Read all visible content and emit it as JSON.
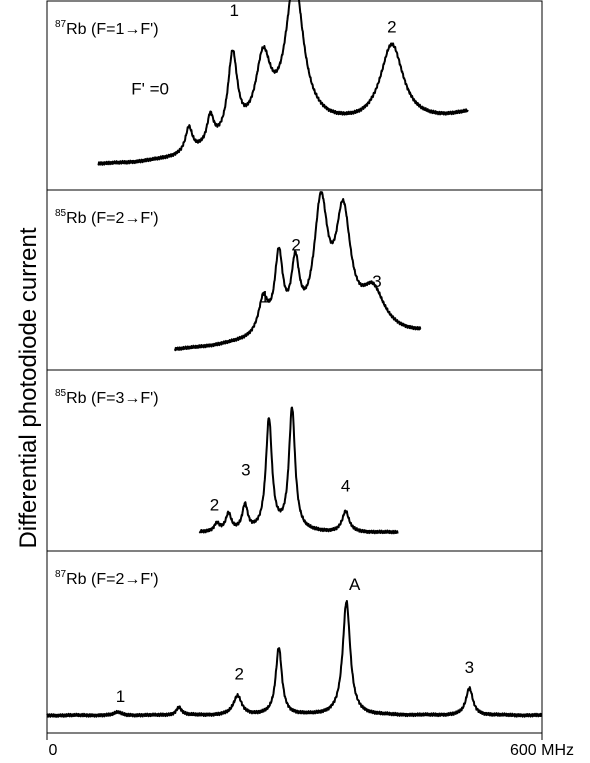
{
  "chart_data": {
    "type": "line",
    "ylabel": "Differential photodiode current",
    "xlim": [
      0,
      600
    ],
    "x_ticks": [
      {
        "value": 0,
        "label": "0"
      },
      {
        "value": 600,
        "label": "600 MHz"
      }
    ],
    "grid": false,
    "panels": [
      {
        "title_iso": "87",
        "title_rest": "Rb (F=1→F')",
        "x_range": [
          62,
          510
        ],
        "base": 0.08,
        "slope": 0.3,
        "curve": 0.55,
        "peaks": [
          {
            "x": 172,
            "h": 0.15,
            "w": 5
          },
          {
            "x": 198,
            "h": 0.17,
            "w": 5
          },
          {
            "x": 225,
            "h": 0.5,
            "w": 7
          },
          {
            "x": 262,
            "h": 0.42,
            "w": 11
          },
          {
            "x": 300,
            "h": 0.86,
            "w": 13
          },
          {
            "x": 418,
            "h": 0.48,
            "w": 17
          }
        ],
        "labels": [
          {
            "text": "F' =0",
            "x": 125,
            "y": 0.5
          },
          {
            "text": "1",
            "x": 227,
            "y": 0.97
          },
          {
            "text": "2",
            "x": 418,
            "y": 0.87
          }
        ]
      },
      {
        "title_iso": "85",
        "title_rest": "Rb (F=2→F')",
        "x_range": [
          155,
          453
        ],
        "base": 0.04,
        "slope": 0.1,
        "curve": 0.25,
        "peaks": [
          {
            "x": 262,
            "h": 0.22,
            "w": 7
          },
          {
            "x": 281,
            "h": 0.48,
            "w": 6
          },
          {
            "x": 301,
            "h": 0.4,
            "w": 6
          },
          {
            "x": 332,
            "h": 0.78,
            "w": 10
          },
          {
            "x": 359,
            "h": 0.72,
            "w": 11
          },
          {
            "x": 395,
            "h": 0.26,
            "w": 17
          }
        ],
        "labels": [
          {
            "text": "1",
            "x": 264,
            "y": 0.35
          },
          {
            "text": "2",
            "x": 302,
            "y": 0.68
          },
          {
            "text": "3",
            "x": 400,
            "y": 0.45
          }
        ]
      },
      {
        "title_iso": "85",
        "title_rest": "Rb (F=3→F')",
        "x_range": [
          185,
          425
        ],
        "base": 0.04,
        "slope": 0.0,
        "curve": 0.0,
        "peaks": [
          {
            "x": 206,
            "h": 0.05,
            "w": 4
          },
          {
            "x": 220,
            "h": 0.11,
            "w": 4
          },
          {
            "x": 240,
            "h": 0.16,
            "w": 4
          },
          {
            "x": 269,
            "h": 0.7,
            "w": 4.5
          },
          {
            "x": 297,
            "h": 0.77,
            "w": 4.5
          },
          {
            "x": 362,
            "h": 0.13,
            "w": 5
          }
        ],
        "labels": [
          {
            "text": "2",
            "x": 203,
            "y": 0.18
          },
          {
            "text": "3",
            "x": 241,
            "y": 0.4
          },
          {
            "text": "4",
            "x": 362,
            "y": 0.3
          }
        ]
      },
      {
        "title_iso": "87",
        "title_rest": "Rb (F=2→F')",
        "x_range": [
          0,
          600
        ],
        "base": 0.035,
        "slope": 0.0,
        "curve": 0.0,
        "peaks": [
          {
            "x": 86,
            "h": 0.02,
            "w": 5
          },
          {
            "x": 160,
            "h": 0.05,
            "w": 4
          },
          {
            "x": 231,
            "h": 0.12,
            "w": 6
          },
          {
            "x": 281,
            "h": 0.42,
            "w": 4.5
          },
          {
            "x": 363,
            "h": 0.71,
            "w": 5.5
          },
          {
            "x": 512,
            "h": 0.17,
            "w": 5
          }
        ],
        "labels": [
          {
            "text": "1",
            "x": 89,
            "y": 0.12
          },
          {
            "text": "2",
            "x": 233,
            "y": 0.26
          },
          {
            "text": "A",
            "x": 373,
            "y": 0.82
          },
          {
            "text": "3",
            "x": 512,
            "y": 0.3
          }
        ]
      }
    ]
  }
}
